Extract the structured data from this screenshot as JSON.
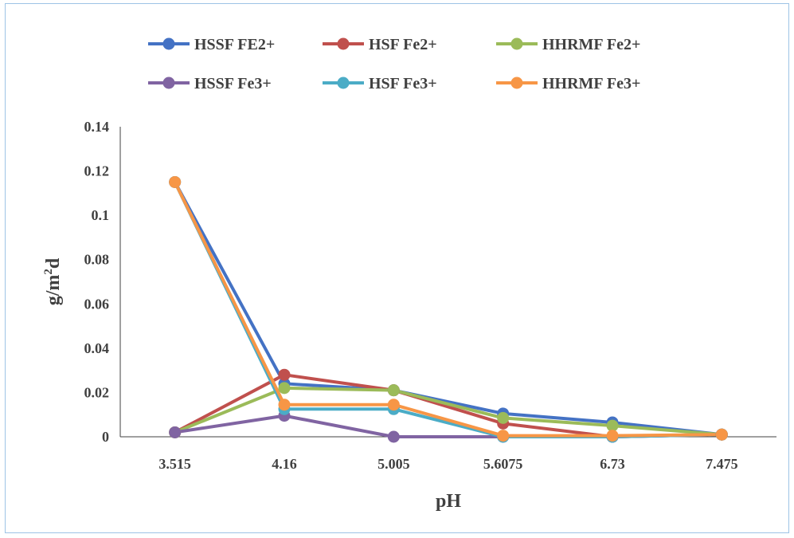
{
  "chart_data": {
    "type": "line",
    "title": "",
    "xlabel": "pH",
    "ylabel_base": "g/m",
    "ylabel_sup": "2",
    "ylabel_tail": "d",
    "x": [
      "3.515",
      "4.16",
      "5.005",
      "5.6075",
      "6.73",
      "7.475"
    ],
    "ylim": [
      0,
      0.14
    ],
    "yticks": [
      "0",
      "0.02",
      "0.04",
      "0.06",
      "0.08",
      "0.1",
      "0.12",
      "0.14"
    ],
    "grid": false,
    "legend_position": "top",
    "series": [
      {
        "name": "HSSF FE2+",
        "color": "#4472c4",
        "values": [
          0.115,
          0.024,
          0.021,
          0.0105,
          0.0065,
          0.001
        ]
      },
      {
        "name": "HSF Fe2+",
        "color": "#c0504d",
        "values": [
          0.002,
          0.028,
          0.021,
          0.006,
          0.0,
          0.001
        ]
      },
      {
        "name": "HHRMF Fe2+",
        "color": "#9bbb59",
        "values": [
          0.002,
          0.022,
          0.021,
          0.0085,
          0.005,
          0.001
        ]
      },
      {
        "name": "HSSF Fe3+",
        "color": "#8064a2",
        "values": [
          0.002,
          0.0095,
          0.0,
          0.0,
          0.0,
          0.001
        ]
      },
      {
        "name": "HSF Fe3+",
        "color": "#4bacc6",
        "values": [
          0.115,
          0.0125,
          0.0125,
          0.0,
          0.0,
          0.001
        ]
      },
      {
        "name": "HHRMF Fe3+",
        "color": "#f79646",
        "values": [
          0.115,
          0.0145,
          0.0145,
          0.0005,
          0.0005,
          0.001
        ]
      }
    ]
  }
}
